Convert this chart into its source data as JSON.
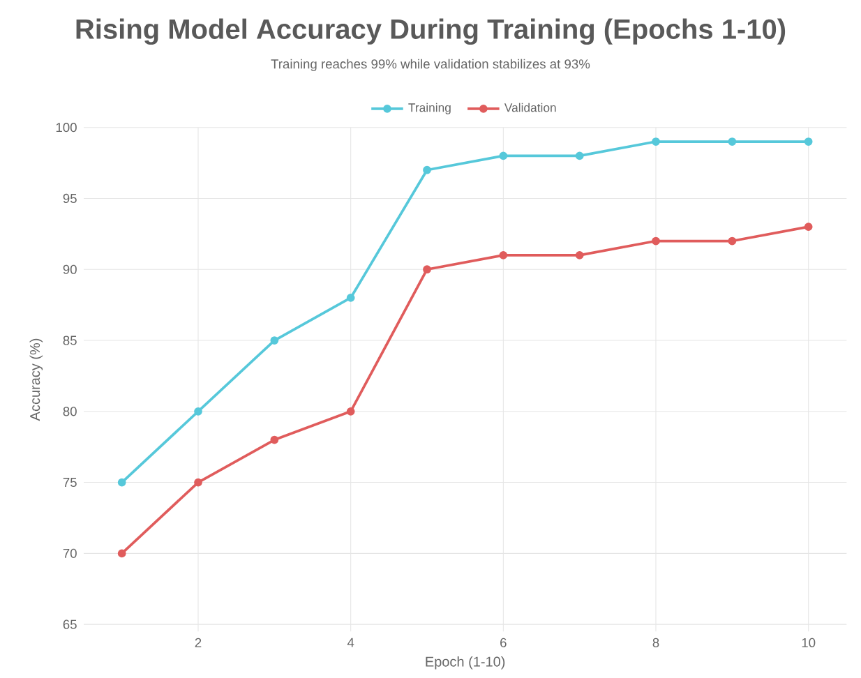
{
  "chart_data": {
    "type": "line",
    "title": "Rising Model Accuracy During Training (Epochs 1-10)",
    "subtitle": "Training reaches 99% while validation stabilizes at 93%",
    "xlabel": "Epoch (1-10)",
    "ylabel": "Accuracy (%)",
    "x": [
      1,
      2,
      3,
      4,
      5,
      6,
      7,
      8,
      9,
      10
    ],
    "series": [
      {
        "name": "Training",
        "color": "#56c8da",
        "values": [
          75,
          80,
          85,
          88,
          97,
          98,
          98,
          99,
          99,
          99
        ]
      },
      {
        "name": "Validation",
        "color": "#e05c5c",
        "values": [
          70,
          75,
          78,
          80,
          90,
          91,
          91,
          92,
          92,
          93
        ]
      }
    ],
    "xlim": [
      0.5,
      10.5
    ],
    "ylim": [
      64.5,
      100
    ],
    "xticks": [
      2,
      4,
      6,
      8,
      10
    ],
    "yticks": [
      65,
      70,
      75,
      80,
      85,
      90,
      95,
      100
    ],
    "grid": true,
    "legend": "top",
    "marker": "circle",
    "line_style": "solid"
  }
}
